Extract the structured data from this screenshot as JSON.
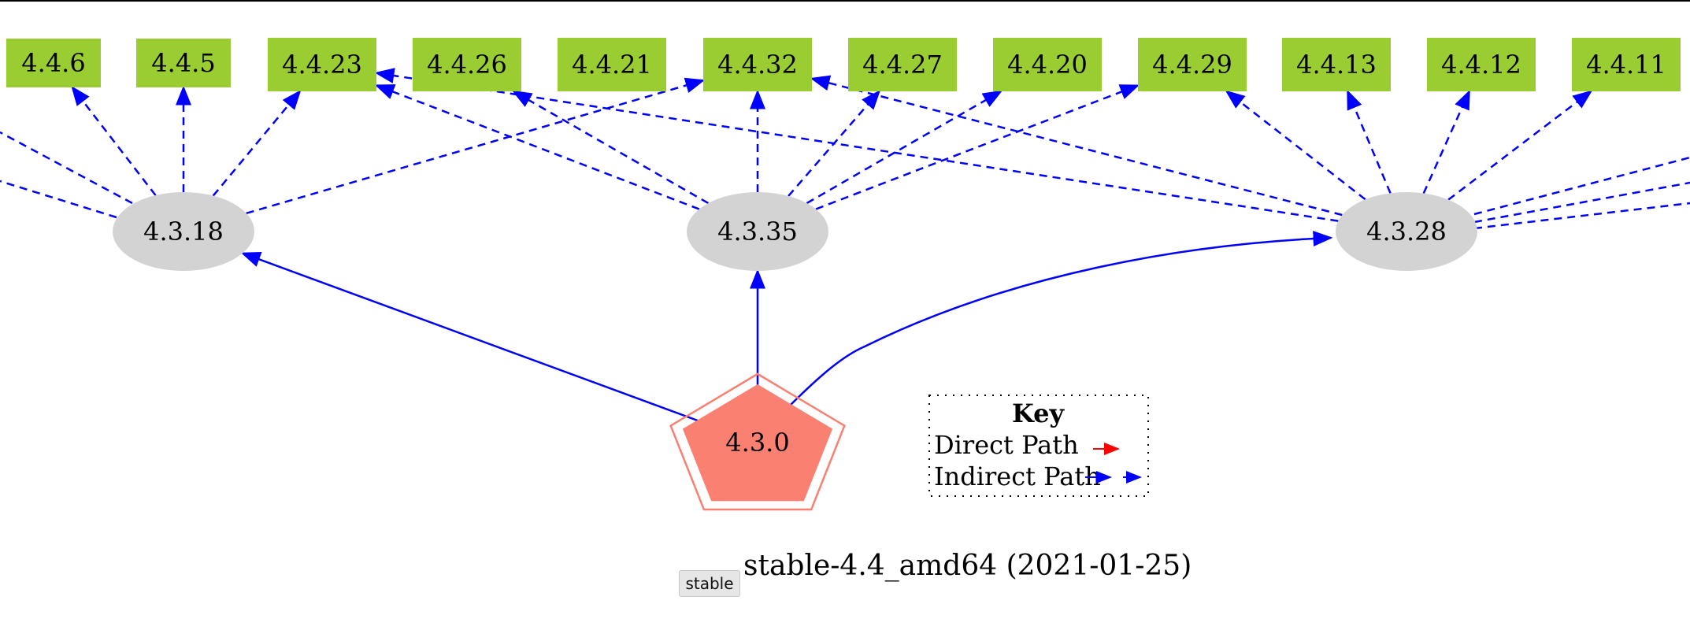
{
  "nodes": {
    "targets": [
      "4.4.6",
      "4.4.5",
      "4.4.23",
      "4.4.26",
      "4.4.21",
      "4.4.32",
      "4.4.27",
      "4.4.20",
      "4.4.29",
      "4.4.13",
      "4.4.12",
      "4.4.11"
    ],
    "intermediates": [
      "4.3.18",
      "4.3.35",
      "4.3.28"
    ],
    "origin": "4.3.0"
  },
  "edges": {
    "direct": [
      {
        "from": "4.3.0",
        "to": "4.3.18"
      },
      {
        "from": "4.3.0",
        "to": "4.3.35"
      },
      {
        "from": "4.3.0",
        "to": "4.3.28"
      }
    ],
    "indirect": [
      {
        "from": "4.3.18",
        "to": "4.4.6"
      },
      {
        "from": "4.3.18",
        "to": "4.4.5"
      },
      {
        "from": "4.3.18",
        "to": "4.4.23"
      },
      {
        "from": "4.3.18",
        "to": "4.4.32"
      },
      {
        "from": "4.3.35",
        "to": "4.4.23"
      },
      {
        "from": "4.3.35",
        "to": "4.4.26"
      },
      {
        "from": "4.3.35",
        "to": "4.4.32"
      },
      {
        "from": "4.3.35",
        "to": "4.4.27"
      },
      {
        "from": "4.3.35",
        "to": "4.4.20"
      },
      {
        "from": "4.3.35",
        "to": "4.4.29"
      },
      {
        "from": "4.3.28",
        "to": "4.4.23"
      },
      {
        "from": "4.3.28",
        "to": "4.4.32"
      },
      {
        "from": "4.3.28",
        "to": "4.4.29"
      },
      {
        "from": "4.3.28",
        "to": "4.4.13"
      },
      {
        "from": "4.3.28",
        "to": "4.4.12"
      },
      {
        "from": "4.3.28",
        "to": "4.4.11"
      }
    ]
  },
  "key": {
    "title": "Key",
    "direct_label": "Direct Path",
    "indirect_label": "Indirect Path"
  },
  "footer": {
    "badge": "stable",
    "caption": "stable-4.4_amd64 (2021-01-25)"
  },
  "colors": {
    "target_fill": "#9acd32",
    "intermediate_fill": "#d3d3d3",
    "origin_fill": "#fa8072",
    "direct_edge": "#ff0000",
    "indirect_edge": "#0000ff"
  }
}
